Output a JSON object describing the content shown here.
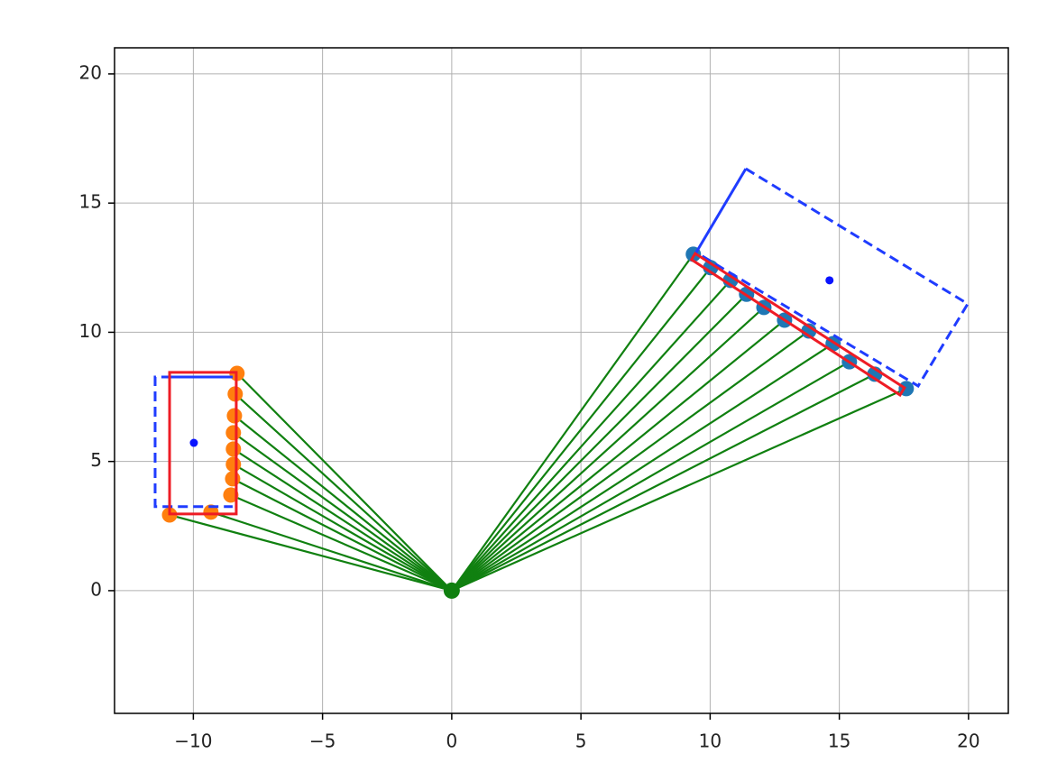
{
  "chart_data": {
    "type": "scatter",
    "xlim": [
      -13.05,
      21.54
    ],
    "ylim": [
      -4.75,
      21.01
    ],
    "xticks": [
      {
        "value": -10,
        "label": "−10"
      },
      {
        "value": -5,
        "label": "−5"
      },
      0,
      5,
      10,
      15,
      20
    ],
    "yticks": [
      0,
      5,
      10,
      15,
      20
    ],
    "grid": true,
    "ray_color": "#108010",
    "series": [
      {
        "color": "#1f77b4",
        "x": [
          9.35,
          10.02,
          10.79,
          11.41,
          12.08,
          12.88,
          13.82,
          14.76,
          15.39,
          16.37,
          17.59
        ],
        "values": [
          13.02,
          12.5,
          12.01,
          11.47,
          10.96,
          10.47,
          10.05,
          9.56,
          8.86,
          8.38,
          7.82
        ]
      },
      {
        "color": "#ff7f0e",
        "x": [
          -8.31,
          -8.38,
          -8.41,
          -8.45,
          -8.45,
          -8.45,
          -8.48,
          -8.55,
          -9.32,
          -10.92
        ],
        "values": [
          8.41,
          7.61,
          6.77,
          6.11,
          5.48,
          4.89,
          4.33,
          3.7,
          3.04,
          2.93
        ]
      },
      {
        "color": "#108010",
        "x": [
          0
        ],
        "values": [
          0
        ]
      }
    ],
    "centers": {
      "color": "#0a14ff",
      "x": [
        -9.98,
        14.62
      ],
      "values": [
        5.72,
        12.01
      ]
    },
    "boxes": [
      {
        "color": "#1f3cff",
        "linestyle": "dashed",
        "x": [
          -8.48,
          -11.48,
          -11.48,
          -8.48
        ],
        "y": [
          8.27,
          8.27,
          3.25,
          3.25
        ]
      },
      {
        "color": "#1f3cff",
        "linestyle": "solid",
        "x": [
          -10.92,
          -8.48
        ],
        "y": [
          8.27,
          8.27
        ]
      },
      {
        "color": "#1f3cff",
        "linestyle": "dashed",
        "x": [
          11.38,
          19.97,
          18.05,
          9.46
        ],
        "y": [
          16.33,
          11.1,
          7.92,
          13.09
        ]
      },
      {
        "color": "#1f3cff",
        "linestyle": "solid",
        "x": [
          9.46,
          11.38
        ],
        "y": [
          13.09,
          16.33
        ]
      },
      {
        "color": "#ee1c25",
        "linestyle": "closed",
        "x": [
          -10.92,
          -8.34,
          -8.34,
          -10.92
        ],
        "y": [
          8.45,
          8.45,
          2.97,
          2.97
        ]
      },
      {
        "color": "#ee1c25",
        "linestyle": "closed",
        "x": [
          9.28,
          9.42,
          17.52,
          17.35
        ],
        "y": [
          12.81,
          13.05,
          7.85,
          7.57
        ]
      }
    ]
  }
}
